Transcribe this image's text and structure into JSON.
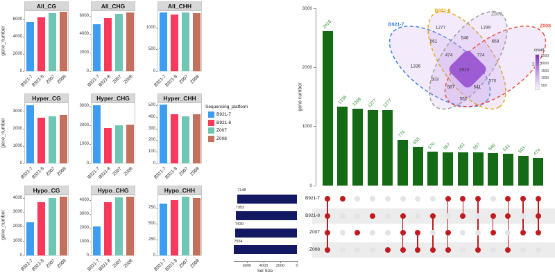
{
  "facet_legend": {
    "title": "Sequencing_platform",
    "entries": [
      "B921-7",
      "B921-8",
      "Z007",
      "Z008"
    ]
  },
  "palette": [
    "#3d9df3",
    "#f8395c",
    "#6fc6b3",
    "#c3705c"
  ],
  "chart_data": [
    {
      "id": "methylation-facets",
      "type": "bar",
      "ylabel": "gene_number",
      "categories": [
        "B921-7",
        "B921-8",
        "Z007",
        "Z008"
      ],
      "series_colors": [
        "#3d9df3",
        "#f8395c",
        "#6fc6b3",
        "#c3705c"
      ],
      "panels": [
        {
          "title": "All_CG",
          "ylim": [
            0,
            7100
          ],
          "yticks": [
            0,
            2000,
            4000,
            6000
          ],
          "values": [
            5750,
            6300,
            6750,
            6900
          ]
        },
        {
          "title": "All_CHG",
          "ylim": [
            0,
            6600
          ],
          "yticks": [
            0,
            2000,
            4000,
            6000
          ],
          "values": [
            5100,
            5750,
            6250,
            6350
          ]
        },
        {
          "title": "All_CHH",
          "ylim": [
            0,
            1400
          ],
          "yticks": [
            0,
            500,
            1000
          ],
          "values": [
            1360,
            1310,
            1360,
            1340
          ]
        },
        {
          "title": "Hyper_CG",
          "ylim": [
            0,
            3550
          ],
          "yticks": [
            0,
            1000,
            2000,
            3000
          ],
          "values": [
            3400,
            2650,
            2750,
            2820
          ]
        },
        {
          "title": "Hyper_CHG",
          "ylim": [
            0,
            3200
          ],
          "yticks": [
            0,
            1000,
            2000,
            3000
          ],
          "values": [
            3050,
            1850,
            2000,
            2050
          ]
        },
        {
          "title": "Hyper_CHH",
          "ylim": [
            0,
            530
          ],
          "yticks": [
            0,
            100,
            200,
            300,
            400,
            500
          ],
          "values": [
            510,
            425,
            410,
            430
          ]
        },
        {
          "title": "Hypo_CG",
          "ylim": [
            0,
            4250
          ],
          "yticks": [
            0,
            1000,
            2000,
            3000,
            4000
          ],
          "values": [
            2320,
            3700,
            4000,
            4120
          ]
        },
        {
          "title": "Hypo_CHG",
          "ylim": [
            0,
            4450
          ],
          "yticks": [
            0,
            1000,
            2000,
            3000,
            4000
          ],
          "values": [
            2100,
            3900,
            4250,
            4300
          ]
        },
        {
          "title": "Hypo_CHH",
          "ylim": [
            0,
            970
          ],
          "yticks": [
            0,
            250,
            500,
            750
          ],
          "values": [
            830,
            880,
            940,
            910
          ]
        }
      ]
    },
    {
      "id": "upset",
      "type": "bar",
      "ylabel": "gene number",
      "ylim": [
        0,
        3000
      ],
      "yticks": [
        0,
        1000,
        2000,
        3000
      ],
      "bar_color": "#156b15",
      "label_color": "#2f8f2f",
      "dot_color": "#c11a1e",
      "dot_empty_color": "#e4e4e4",
      "set_size_bar_color": "#131863",
      "sets": [
        "B921-7",
        "B921-8",
        "Z007",
        "Z008"
      ],
      "set_sizes": [
        7148,
        7352,
        7430,
        7554
      ],
      "set_size_label": "Set Size",
      "set_size_ticks": [
        6000,
        4000,
        2000,
        0
      ],
      "intersections": [
        {
          "value": 2610,
          "members": [
            1,
            1,
            1,
            1
          ]
        },
        {
          "value": 1336,
          "members": [
            1,
            0,
            0,
            0
          ]
        },
        {
          "value": 1299,
          "members": [
            0,
            0,
            1,
            0
          ]
        },
        {
          "value": 1277,
          "members": [
            0,
            1,
            0,
            0
          ]
        },
        {
          "value": 1277,
          "members": [
            0,
            0,
            0,
            1
          ]
        },
        {
          "value": 774,
          "members": [
            0,
            1,
            1,
            1
          ]
        },
        {
          "value": 658,
          "members": [
            0,
            0,
            1,
            1
          ]
        },
        {
          "value": 570,
          "members": [
            0,
            1,
            0,
            1
          ]
        },
        {
          "value": 567,
          "members": [
            1,
            0,
            1,
            1
          ]
        },
        {
          "value": 561,
          "members": [
            1,
            1,
            0,
            0
          ]
        },
        {
          "value": 557,
          "members": [
            1,
            0,
            0,
            1
          ]
        },
        {
          "value": 546,
          "members": [
            0,
            1,
            1,
            0
          ]
        },
        {
          "value": 541,
          "members": [
            1,
            1,
            0,
            1
          ]
        },
        {
          "value": 503,
          "members": [
            1,
            0,
            1,
            0
          ]
        },
        {
          "value": 474,
          "members": [
            1,
            1,
            1,
            0
          ]
        }
      ]
    },
    {
      "id": "venn",
      "type": "venn",
      "fill_color": "#bb8fe7",
      "center_fill": "#9a55d2",
      "set_labels": [
        {
          "text": "B921-7",
          "color": "#3b82e0",
          "x": 23,
          "y": 36
        },
        {
          "text": "B921-8",
          "color": "#e3a81c",
          "x": 90,
          "y": 16
        },
        {
          "text": "Z007",
          "color": "#9b9b9b",
          "x": 168,
          "y": 21
        },
        {
          "text": "Z008",
          "color": "#e8543f",
          "x": 238,
          "y": 38
        }
      ],
      "regions": [
        {
          "sets": "B921-7",
          "value": 1336,
          "x": 51,
          "y": 96
        },
        {
          "sets": "B921-8",
          "value": 1277,
          "x": 87,
          "y": 40
        },
        {
          "sets": "Z007",
          "value": 1299,
          "x": 152,
          "y": 40
        },
        {
          "sets": "Z008",
          "value": 1277,
          "x": 226,
          "y": 93
        },
        {
          "sets": "B921-7&B921-8",
          "value": 561,
          "x": 77,
          "y": 60
        },
        {
          "sets": "B921-8&Z007",
          "value": 546,
          "x": 122,
          "y": 55
        },
        {
          "sets": "Z007&Z008",
          "value": 658,
          "x": 166,
          "y": 60
        },
        {
          "sets": "B921-7&B921-8&Z007",
          "value": 474,
          "x": 99,
          "y": 80
        },
        {
          "sets": "B921-8&Z007&Z008",
          "value": 774,
          "x": 145,
          "y": 80
        },
        {
          "sets": "B921-7&B921-8&Z007&Z008",
          "value": 2610,
          "x": 121,
          "y": 101
        },
        {
          "sets": "B921-7&Z007",
          "value": 503,
          "x": 79,
          "y": 115
        },
        {
          "sets": "B921-7&Z007&Z008",
          "value": 567,
          "x": 102,
          "y": 126
        },
        {
          "sets": "B921-7&B921-8&Z008",
          "value": 541,
          "x": 140,
          "y": 126
        },
        {
          "sets": "B921-8&Z008",
          "value": 570,
          "x": 162,
          "y": 117
        },
        {
          "sets": "B921-7&Z008",
          "value": 557,
          "x": 120,
          "y": 143
        }
      ],
      "legend": {
        "title": "count",
        "ticks": [
          2500,
          2000,
          1500,
          1000,
          500
        ]
      }
    }
  ]
}
